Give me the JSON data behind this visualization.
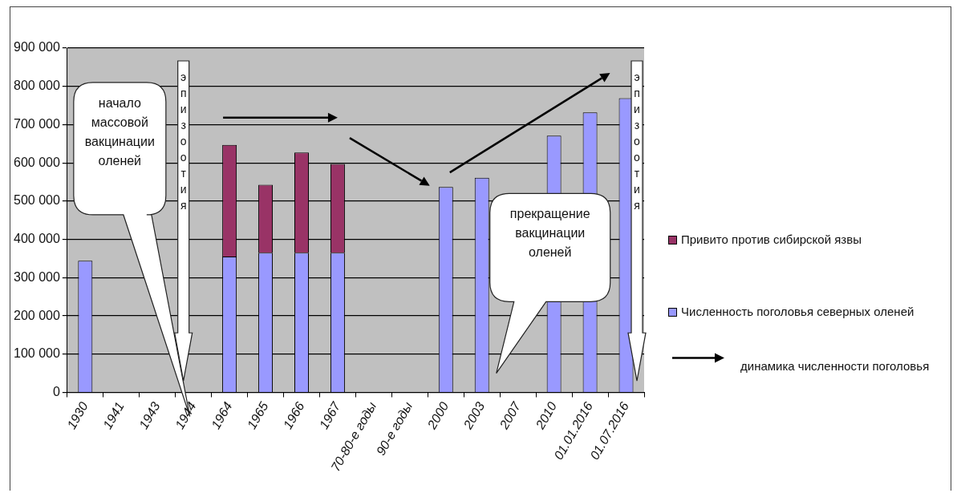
{
  "chart_data": {
    "type": "bar",
    "stacked": true,
    "categories": [
      "1930",
      "1941",
      "1943",
      "1944",
      "1964",
      "1965",
      "1966",
      "1967",
      "70-80-е годы",
      "90-е годы",
      "2000",
      "2003",
      "2007",
      "2010",
      "01.01.2016",
      "01.07.2016"
    ],
    "series": [
      {
        "name": "Численность поголовья северных оленей",
        "color": "#9999ff",
        "values": [
          344000,
          null,
          null,
          null,
          355000,
          365000,
          365000,
          365000,
          null,
          null,
          537000,
          561000,
          null,
          671000,
          732000,
          769000
        ]
      },
      {
        "name": "Привито против сибирской язвы",
        "color": "#993366",
        "values": [
          null,
          null,
          null,
          null,
          292000,
          178000,
          262000,
          232000,
          null,
          null,
          null,
          null,
          null,
          null,
          null,
          null
        ]
      }
    ],
    "ylim": [
      0,
      900000
    ],
    "yticks": [
      {
        "value": 0,
        "label": "0"
      },
      {
        "value": 100000,
        "label": "100 000"
      },
      {
        "value": 200000,
        "label": "200 000"
      },
      {
        "value": 300000,
        "label": "300 000"
      },
      {
        "value": 400000,
        "label": "400 000"
      },
      {
        "value": 500000,
        "label": "500 000"
      },
      {
        "value": 600000,
        "label": "600 000"
      },
      {
        "value": 700000,
        "label": "700 000"
      },
      {
        "value": 800000,
        "label": "800 000"
      },
      {
        "value": 900000,
        "label": "900 000"
      }
    ],
    "grid": "y",
    "legend": "right",
    "annotations": [
      "начало массовой вакцинации оленей",
      "эпизоотия",
      "эпизоотия",
      "прекращение вакцинации оленей",
      "динамика численности поголовья"
    ]
  }
}
